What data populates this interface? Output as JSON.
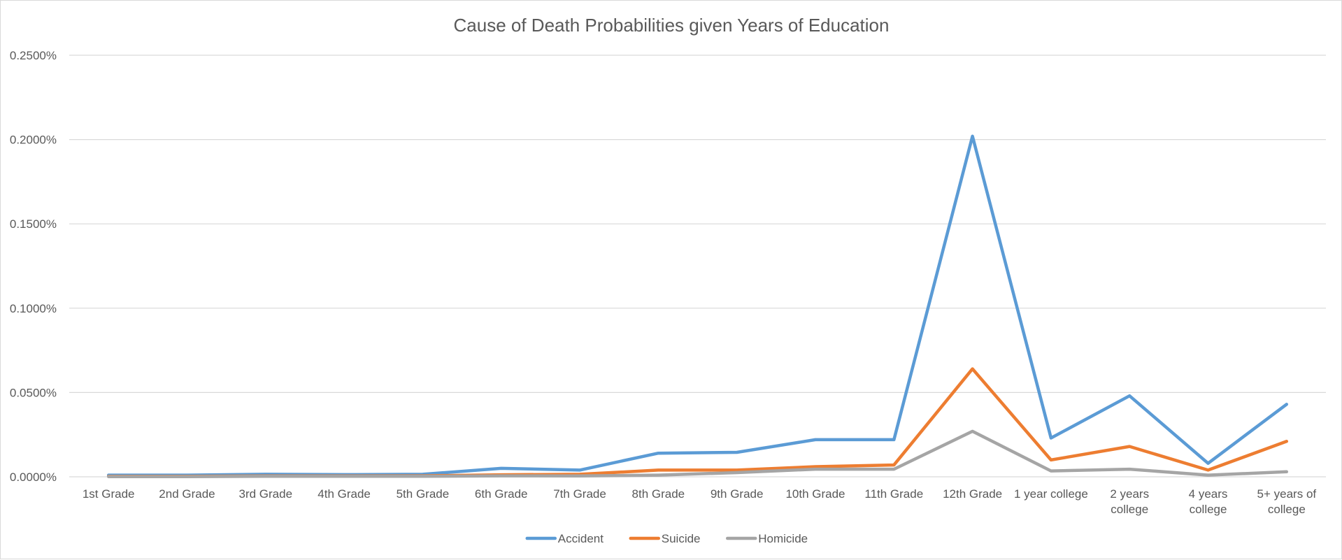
{
  "chart_data": {
    "type": "line",
    "title": "Cause of Death Probabilities given Years of Education",
    "xlabel": "",
    "ylabel": "",
    "ylim": [
      0,
      0.0025
    ],
    "yticks": [
      {
        "value": 0,
        "label": "0.0000%"
      },
      {
        "value": 0.0005,
        "label": "0.0500%"
      },
      {
        "value": 0.001,
        "label": "0.1000%"
      },
      {
        "value": 0.0015,
        "label": "0.1500%"
      },
      {
        "value": 0.002,
        "label": "0.2000%"
      },
      {
        "value": 0.0025,
        "label": "0.2500%"
      }
    ],
    "categories": [
      "1st Grade",
      "2nd Grade",
      "3rd Grade",
      "4th Grade",
      "5th Grade",
      "6th Grade",
      "7th Grade",
      "8th Grade",
      "9th Grade",
      "10th Grade",
      "11th Grade",
      "12th Grade",
      "1 year college",
      "2 years college",
      "4 years college",
      "5+ years of college"
    ],
    "category_lines": [
      [
        "1st Grade"
      ],
      [
        "2nd Grade"
      ],
      [
        "3rd Grade"
      ],
      [
        "4th Grade"
      ],
      [
        "5th Grade"
      ],
      [
        "6th Grade"
      ],
      [
        "7th Grade"
      ],
      [
        "8th Grade"
      ],
      [
        "9th Grade"
      ],
      [
        "10th Grade"
      ],
      [
        "11th Grade"
      ],
      [
        "12th Grade"
      ],
      [
        "1 year college"
      ],
      [
        "2 years",
        "college"
      ],
      [
        "4 years",
        "college"
      ],
      [
        "5+ years of",
        "college"
      ]
    ],
    "series": [
      {
        "name": "Accident",
        "color": "#5b9bd5",
        "values": [
          1e-05,
          1e-05,
          1.5e-05,
          1.3e-05,
          1.5e-05,
          5e-05,
          4e-05,
          0.00014,
          0.000145,
          0.00022,
          0.00022,
          0.00202,
          0.00023,
          0.00048,
          8e-05,
          0.00043
        ]
      },
      {
        "name": "Suicide",
        "color": "#ed7d31",
        "values": [
          3e-06,
          3e-06,
          5e-06,
          5e-06,
          6e-06,
          1.2e-05,
          1.5e-05,
          4e-05,
          4e-05,
          6e-05,
          7e-05,
          0.00064,
          0.0001,
          0.00018,
          4e-05,
          0.00021
        ]
      },
      {
        "name": "Homicide",
        "color": "#a5a5a5",
        "values": [
          1e-06,
          1e-06,
          3e-06,
          3e-06,
          3e-06,
          6e-06,
          5e-06,
          1e-05,
          2.5e-05,
          4.5e-05,
          4.5e-05,
          0.00027,
          3.5e-05,
          4.5e-05,
          1e-05,
          3e-05
        ]
      }
    ],
    "grid": true,
    "legend_position": "bottom"
  }
}
